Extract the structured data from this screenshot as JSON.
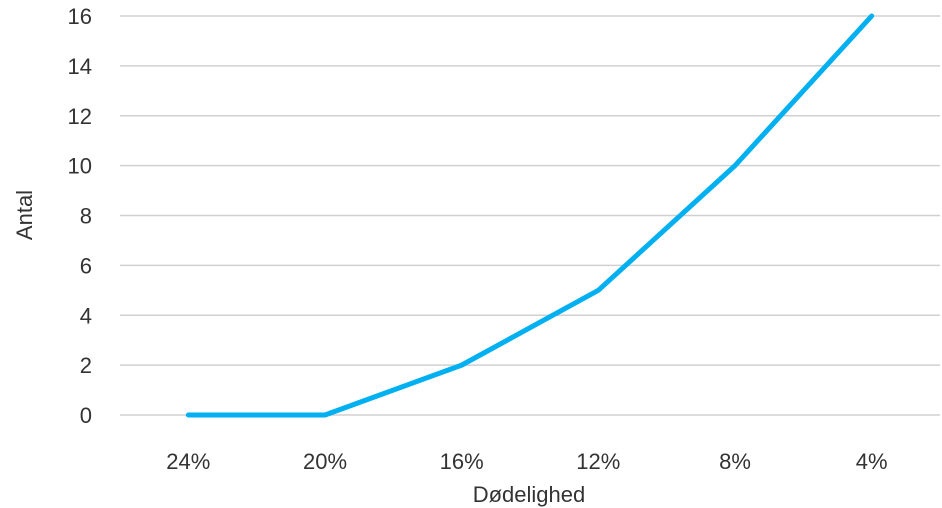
{
  "chart_data": {
    "type": "line",
    "title": "",
    "xlabel": "Dødelighed",
    "ylabel": "Antal",
    "categories": [
      "24%",
      "20%",
      "16%",
      "12%",
      "8%",
      "4%"
    ],
    "series": [
      {
        "values": [
          0,
          0,
          2,
          5,
          10,
          16
        ]
      }
    ],
    "ylim": [
      0,
      16
    ],
    "yticks": [
      "0",
      "2",
      "4",
      "6",
      "8",
      "10",
      "12",
      "14",
      "16"
    ],
    "grid": true,
    "legend": "none",
    "colors": {
      "line": "#00b0f0",
      "grid": "#d0d0d0",
      "text": "#333333"
    }
  }
}
